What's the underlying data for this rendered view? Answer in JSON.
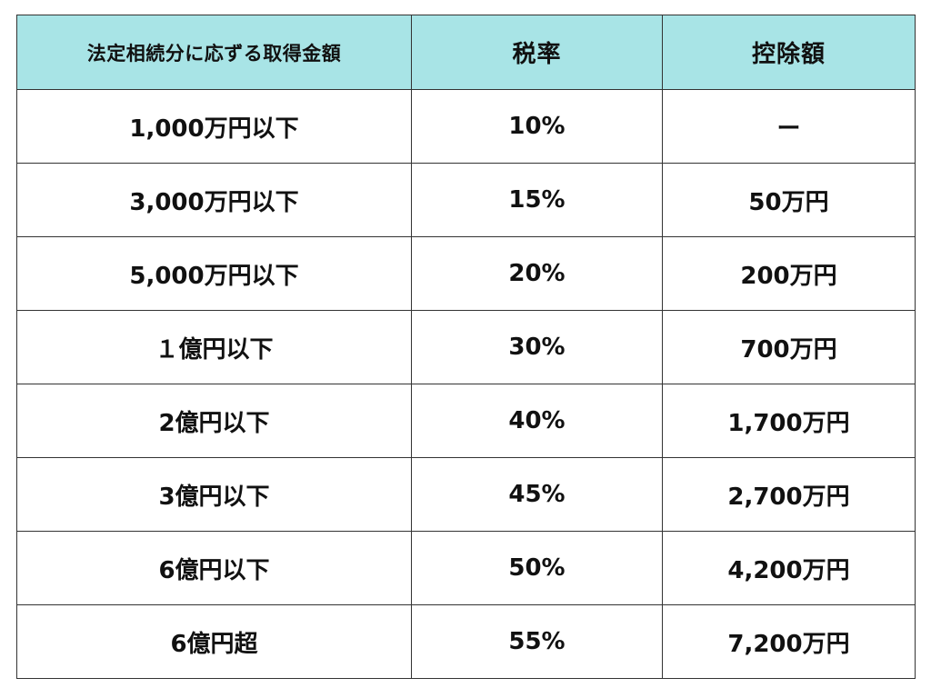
{
  "table": {
    "headers": [
      "法定相続分に応ずる取得金額",
      "税率",
      "控除額"
    ],
    "rows": [
      [
        "1,000万円以下",
        "10%",
        "ー"
      ],
      [
        "3,000万円以下",
        "15%",
        "50万円"
      ],
      [
        "5,000万円以下",
        "20%",
        "200万円"
      ],
      [
        "１億円以下",
        "30%",
        "700万円"
      ],
      [
        "2億円以下",
        "40%",
        "1,700万円"
      ],
      [
        "3億円以下",
        "45%",
        "2,700万円"
      ],
      [
        "6億円以下",
        "50%",
        "4,200万円"
      ],
      [
        "6億円超",
        "55%",
        "7,200万円"
      ]
    ],
    "header_bg": "#a8e4e6",
    "border_color": "#333333"
  }
}
